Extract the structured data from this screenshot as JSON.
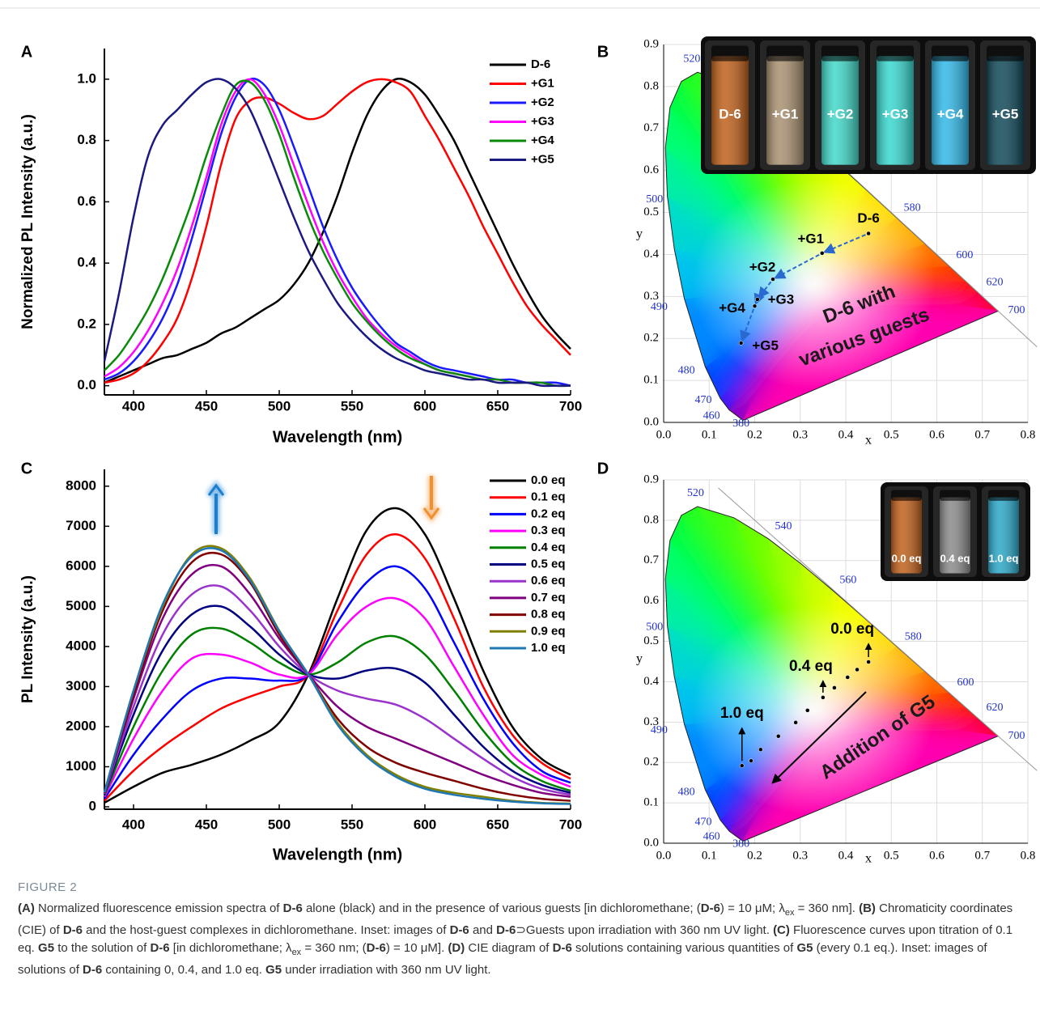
{
  "figure": {
    "label": "FIGURE 2",
    "caption": [
      {
        "text": "(A)",
        "style": "bold"
      },
      {
        "text": " Normalized fluorescence emission spectra of "
      },
      {
        "text": "D-6",
        "style": "bold"
      },
      {
        "text": " alone (black) and in the presence of various guests [in dichloromethane; ("
      },
      {
        "text": "D-6",
        "style": "bold"
      },
      {
        "text": ") = 10 μM; λ"
      },
      {
        "text": "ex",
        "style": "sub"
      },
      {
        "text": " = 360 nm]. "
      },
      {
        "text": "(B)",
        "style": "bold"
      },
      {
        "text": " Chromaticity coordinates (CIE) of "
      },
      {
        "text": "D-6",
        "style": "bold"
      },
      {
        "text": " and the host-guest complexes in dichloromethane. Inset: images of "
      },
      {
        "text": "D-6",
        "style": "bold"
      },
      {
        "text": " and "
      },
      {
        "text": "D-6",
        "style": "bold"
      },
      {
        "text": "⊃Guests upon irradiation with 360 nm UV light. "
      },
      {
        "text": "(C)",
        "style": "bold"
      },
      {
        "text": " Fluorescence curves upon titration of 0.1 eq. "
      },
      {
        "text": "G5",
        "style": "bold"
      },
      {
        "text": " to the solution of "
      },
      {
        "text": "D-6",
        "style": "bold"
      },
      {
        "text": " [in dichloromethane; λ"
      },
      {
        "text": "ex",
        "style": "sub"
      },
      {
        "text": " = 360 nm; ("
      },
      {
        "text": "D-6",
        "style": "bold"
      },
      {
        "text": ") = 10 μM]. "
      },
      {
        "text": "(D)",
        "style": "bold"
      },
      {
        "text": " CIE diagram of "
      },
      {
        "text": "D-6",
        "style": "bold"
      },
      {
        "text": " solutions containing various quantities of "
      },
      {
        "text": "G5",
        "style": "bold"
      },
      {
        "text": " (every 0.1 eq.). Inset: images of solutions of "
      },
      {
        "text": "D-6",
        "style": "bold"
      },
      {
        "text": " containing 0, 0.4, and 1.0 eq. "
      },
      {
        "text": "G5",
        "style": "bold"
      },
      {
        "text": " under irradiation with 360 nm UV light."
      }
    ]
  },
  "chart_data": [
    {
      "type": "line",
      "panel": "A",
      "xlabel": "Wavelength (nm)",
      "ylabel": "Normalized PL Intensity (a.u.)",
      "legend": "top-right",
      "x": [
        380,
        390,
        400,
        410,
        420,
        430,
        440,
        450,
        460,
        470,
        480,
        490,
        500,
        510,
        520,
        530,
        540,
        550,
        560,
        570,
        580,
        590,
        600,
        610,
        620,
        630,
        640,
        650,
        660,
        670,
        680,
        690,
        700
      ],
      "xlim": [
        380,
        700
      ],
      "xticks": [
        400,
        450,
        500,
        550,
        600,
        650,
        700
      ],
      "ylim": [
        -0.03,
        1.1
      ],
      "yticks": [
        {
          "value": 0,
          "label": "0.0"
        },
        0.2,
        0.4,
        0.6,
        0.8,
        {
          "value": 1,
          "label": "1.0"
        }
      ],
      "series": [
        {
          "name": "D-6",
          "color": "#000000",
          "values": [
            0.01,
            0.03,
            0.05,
            0.07,
            0.09,
            0.1,
            0.12,
            0.14,
            0.17,
            0.19,
            0.22,
            0.25,
            0.28,
            0.33,
            0.4,
            0.5,
            0.62,
            0.76,
            0.88,
            0.96,
            1.0,
            0.99,
            0.95,
            0.88,
            0.8,
            0.7,
            0.6,
            0.5,
            0.4,
            0.31,
            0.23,
            0.17,
            0.12
          ]
        },
        {
          "name": "+G1",
          "color": "#ff0000",
          "values": [
            0.01,
            0.02,
            0.04,
            0.08,
            0.14,
            0.22,
            0.35,
            0.52,
            0.72,
            0.87,
            0.93,
            0.94,
            0.92,
            0.89,
            0.87,
            0.88,
            0.92,
            0.96,
            0.99,
            1.0,
            0.99,
            0.96,
            0.88,
            0.8,
            0.71,
            0.62,
            0.52,
            0.43,
            0.34,
            0.26,
            0.2,
            0.15,
            0.1
          ]
        },
        {
          "name": "+G2",
          "color": "#1a1aff",
          "values": [
            0.02,
            0.04,
            0.08,
            0.14,
            0.22,
            0.33,
            0.48,
            0.65,
            0.82,
            0.94,
            1.0,
            0.98,
            0.9,
            0.78,
            0.65,
            0.52,
            0.41,
            0.32,
            0.25,
            0.19,
            0.14,
            0.11,
            0.08,
            0.06,
            0.05,
            0.04,
            0.03,
            0.02,
            0.02,
            0.01,
            0.01,
            0.01,
            0.0
          ]
        },
        {
          "name": "+G3",
          "color": "#ff00ff",
          "values": [
            0.03,
            0.06,
            0.11,
            0.18,
            0.27,
            0.38,
            0.52,
            0.68,
            0.85,
            0.96,
            1.0,
            0.95,
            0.85,
            0.72,
            0.59,
            0.47,
            0.37,
            0.29,
            0.22,
            0.17,
            0.13,
            0.1,
            0.07,
            0.05,
            0.04,
            0.03,
            0.02,
            0.02,
            0.01,
            0.01,
            0.01,
            0.0,
            0.0
          ]
        },
        {
          "name": "+G4",
          "color": "#0a8a0a",
          "values": [
            0.05,
            0.1,
            0.17,
            0.25,
            0.35,
            0.47,
            0.6,
            0.75,
            0.88,
            0.98,
            0.99,
            0.93,
            0.82,
            0.68,
            0.55,
            0.44,
            0.35,
            0.27,
            0.21,
            0.16,
            0.12,
            0.09,
            0.07,
            0.05,
            0.04,
            0.03,
            0.02,
            0.02,
            0.01,
            0.01,
            0.01,
            0.0,
            0.0
          ]
        },
        {
          "name": "+G5",
          "color": "#1a1a80",
          "values": [
            0.08,
            0.3,
            0.55,
            0.75,
            0.85,
            0.9,
            0.95,
            0.99,
            1.0,
            0.97,
            0.9,
            0.79,
            0.67,
            0.55,
            0.44,
            0.35,
            0.27,
            0.21,
            0.16,
            0.12,
            0.09,
            0.07,
            0.05,
            0.04,
            0.03,
            0.02,
            0.02,
            0.01,
            0.01,
            0.01,
            0.0,
            0.0,
            0.0
          ]
        }
      ]
    },
    {
      "type": "cie",
      "panel": "B",
      "xlabel": "x",
      "ylabel": "y",
      "grid": true,
      "xlim": [
        0,
        0.8
      ],
      "xticks": [
        {
          "value": 0,
          "label": "0.0"
        },
        0.1,
        0.2,
        0.3,
        0.4,
        0.5,
        0.6,
        0.7,
        0.8
      ],
      "ylim": [
        0,
        0.9
      ],
      "yticks": [
        {
          "value": 0,
          "label": "0.0"
        },
        0.1,
        0.2,
        0.3,
        0.4,
        0.5,
        0.6,
        0.7,
        0.8,
        0.9
      ],
      "wavelength_labels": [
        "520",
        "500",
        "490",
        "480",
        "470",
        "460",
        "380",
        "580",
        "600",
        "620",
        "700"
      ],
      "x": [
        0.45,
        0.348,
        0.24,
        0.206,
        0.2,
        0.17
      ],
      "values": [
        0.45,
        0.403,
        0.341,
        0.293,
        0.277,
        0.189
      ],
      "point_labels": [
        "D-6",
        "+G1",
        "+G2",
        "+G3",
        "+G4",
        "+G5"
      ],
      "annotation": [
        "D-6 with",
        "various guests"
      ],
      "inset": [
        {
          "label": "D-6",
          "color": "#c0601a"
        },
        {
          "label": "+G1",
          "color": "#a89070"
        },
        {
          "label": "+G2",
          "color": "#40d8c8"
        },
        {
          "label": "+G3",
          "color": "#38d8d0"
        },
        {
          "label": "+G4",
          "color": "#30b8e8"
        },
        {
          "label": "+G5",
          "color": "#104858"
        }
      ]
    },
    {
      "type": "line",
      "panel": "C",
      "xlabel": "Wavelength (nm)",
      "ylabel": "PL Intensity (a.u.)",
      "legend": "top-right",
      "x": [
        380,
        400,
        420,
        440,
        460,
        480,
        500,
        520,
        540,
        560,
        580,
        600,
        620,
        640,
        660,
        680,
        700
      ],
      "xlim": [
        380,
        700
      ],
      "xticks": [
        400,
        450,
        500,
        550,
        600,
        650,
        700
      ],
      "ylim": [
        -60,
        8420
      ],
      "yticks": [
        0,
        1000,
        2000,
        3000,
        4000,
        5000,
        6000,
        7000,
        8000
      ],
      "series": [
        {
          "name": "0.0 eq",
          "color": "#000000",
          "values": [
            100,
            500,
            850,
            1050,
            1300,
            1650,
            2100,
            3300,
            5200,
            6900,
            7450,
            6800,
            5200,
            3400,
            2000,
            1200,
            800
          ]
        },
        {
          "name": "0.1 eq",
          "color": "#ff0000",
          "values": [
            150,
            900,
            1500,
            2000,
            2450,
            2750,
            3000,
            3300,
            4900,
            6300,
            6800,
            6200,
            4700,
            3000,
            1800,
            1100,
            700
          ]
        },
        {
          "name": "0.2 eq",
          "color": "#0000ff",
          "values": [
            200,
            1300,
            2200,
            2900,
            3200,
            3200,
            3150,
            3300,
            4600,
            5600,
            6000,
            5450,
            4100,
            2700,
            1600,
            900,
            600
          ]
        },
        {
          "name": "0.3 eq",
          "color": "#ff00ff",
          "values": [
            250,
            1700,
            2900,
            3700,
            3800,
            3600,
            3300,
            3300,
            4300,
            5000,
            5200,
            4700,
            3500,
            2300,
            1300,
            800,
            500
          ]
        },
        {
          "name": "0.4 eq",
          "color": "#008000",
          "values": [
            280,
            2000,
            3400,
            4300,
            4450,
            4100,
            3600,
            3300,
            3600,
            4100,
            4250,
            3800,
            2900,
            1900,
            1100,
            650,
            400
          ]
        },
        {
          "name": "0.5 eq",
          "color": "#000080",
          "values": [
            300,
            2300,
            3900,
            4800,
            5000,
            4500,
            3800,
            3300,
            3200,
            3400,
            3450,
            3100,
            2300,
            1500,
            900,
            550,
            350
          ]
        },
        {
          "name": "0.6 eq",
          "color": "#9933cc",
          "values": [
            320,
            2500,
            4300,
            5300,
            5500,
            4900,
            4000,
            3300,
            2900,
            2700,
            2550,
            2200,
            1700,
            1200,
            750,
            450,
            300
          ]
        },
        {
          "name": "0.7 eq",
          "color": "#800080",
          "values": [
            340,
            2700,
            4700,
            5800,
            6000,
            5300,
            4200,
            3300,
            2500,
            2000,
            1700,
            1400,
            1100,
            800,
            550,
            350,
            250
          ]
        },
        {
          "name": "0.8 eq",
          "color": "#800000",
          "values": [
            350,
            2800,
            4900,
            6100,
            6300,
            5600,
            4300,
            3300,
            2200,
            1500,
            1100,
            850,
            650,
            450,
            300,
            200,
            150
          ]
        },
        {
          "name": "0.9 eq",
          "color": "#808000",
          "values": [
            360,
            2900,
            5000,
            6300,
            6450,
            5700,
            4400,
            3300,
            2100,
            1300,
            800,
            500,
            350,
            250,
            150,
            100,
            80
          ]
        },
        {
          "name": "1.0 eq",
          "color": "#1f77b4",
          "values": [
            360,
            2900,
            5050,
            6250,
            6400,
            5650,
            4380,
            3300,
            2050,
            1250,
            750,
            450,
            300,
            200,
            130,
            90,
            70
          ]
        }
      ]
    },
    {
      "type": "cie",
      "panel": "D",
      "xlabel": "x",
      "ylabel": "y",
      "grid": true,
      "xlim": [
        0,
        0.8
      ],
      "xticks": [
        {
          "value": 0,
          "label": "0.0"
        },
        0.1,
        0.2,
        0.3,
        0.4,
        0.5,
        0.6,
        0.7,
        0.8
      ],
      "ylim": [
        0,
        0.9
      ],
      "yticks": [
        {
          "value": 0,
          "label": "0.0"
        },
        0.1,
        0.2,
        0.3,
        0.4,
        0.5,
        0.6,
        0.7,
        0.8,
        0.9
      ],
      "wavelength_labels": [
        "520",
        "540",
        "560",
        "500",
        "490",
        "480",
        "470",
        "460",
        "380",
        "580",
        "600",
        "620",
        "700"
      ],
      "x": [
        0.45,
        0.425,
        0.404,
        0.375,
        0.35,
        0.316,
        0.29,
        0.252,
        0.213,
        0.192,
        0.172
      ],
      "values": [
        0.449,
        0.43,
        0.411,
        0.385,
        0.361,
        0.329,
        0.299,
        0.265,
        0.232,
        0.204,
        0.192
      ],
      "point_labels": [
        "0.0 eq",
        null,
        null,
        null,
        "0.4 eq",
        null,
        null,
        null,
        null,
        null,
        "1.0 eq"
      ],
      "annotation": [
        "Addition of G5"
      ],
      "inset": [
        {
          "label": "0.0 eq",
          "color": "#c0601a"
        },
        {
          "label": "0.4 eq",
          "color": "#8a8a8a"
        },
        {
          "label": "1.0 eq",
          "color": "#2aa8c8"
        }
      ]
    }
  ]
}
